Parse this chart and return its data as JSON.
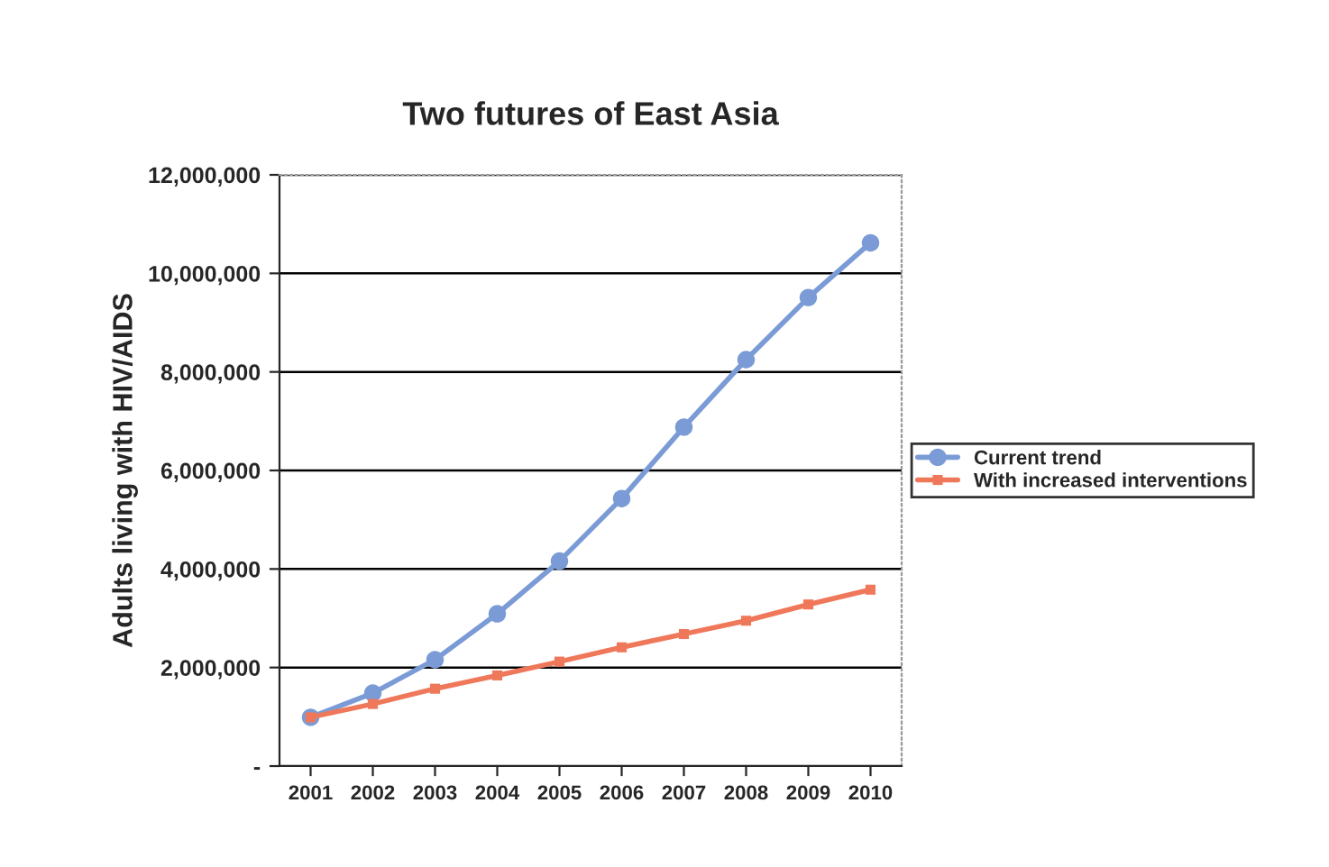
{
  "chart_data": {
    "type": "line",
    "title": "Two futures of East Asia",
    "ylabel": "Adults living with HIV/AIDS",
    "categories": [
      "2001",
      "2002",
      "2003",
      "2004",
      "2005",
      "2006",
      "2007",
      "2008",
      "2009",
      "2010"
    ],
    "series": [
      {
        "name": "Current trend",
        "color": "#7b9bd6",
        "marker": "circle",
        "values": [
          990000,
          1480000,
          2160000,
          3090000,
          4160000,
          5430000,
          6880000,
          8250000,
          9510000,
          10620000
        ]
      },
      {
        "name": "With increased interventions",
        "color": "#f0785a",
        "marker": "square",
        "values": [
          990000,
          1260000,
          1570000,
          1840000,
          2120000,
          2410000,
          2680000,
          2950000,
          3280000,
          3580000
        ]
      }
    ],
    "ylim": [
      0,
      12000000
    ],
    "yticks": [
      {
        "value": 0,
        "label": "-"
      },
      {
        "value": 2000000,
        "label": "2,000,000"
      },
      {
        "value": 4000000,
        "label": "4,000,000"
      },
      {
        "value": 6000000,
        "label": "6,000,000"
      },
      {
        "value": 8000000,
        "label": "8,000,000"
      },
      {
        "value": 10000000,
        "label": "10,000,000"
      },
      {
        "value": 12000000,
        "label": "12,000,000"
      }
    ],
    "grid": "y",
    "legend": "right"
  }
}
